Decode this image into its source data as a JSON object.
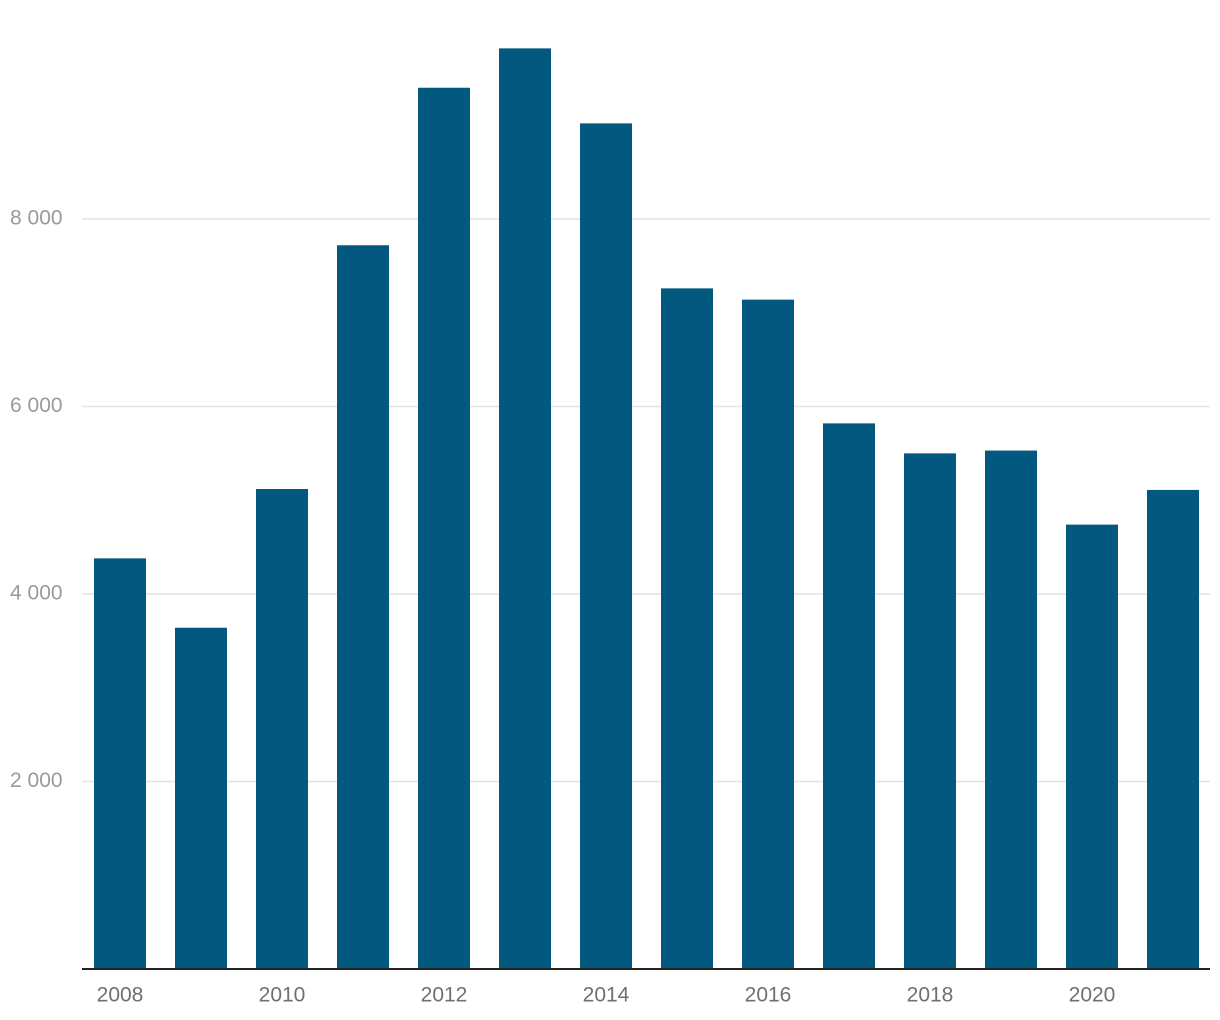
{
  "chart_data": {
    "type": "bar",
    "categories": [
      "2008",
      null,
      "2010",
      null,
      "2012",
      null,
      "2014",
      null,
      "2016",
      null,
      "2018",
      null,
      "2020",
      null
    ],
    "values": [
      4380,
      3640,
      5120,
      7720,
      9400,
      9820,
      9020,
      7260,
      7140,
      5820,
      5500,
      5530,
      4740,
      5110
    ],
    "color": "#02587f",
    "ylim": [
      0,
      10000
    ],
    "yticks": [
      {
        "value": 2000,
        "label": "2 000"
      },
      {
        "value": 4000,
        "label": "4 000"
      },
      {
        "value": 6000,
        "label": "6 000"
      },
      {
        "value": 8000,
        "label": "8 000"
      }
    ],
    "grid": true
  }
}
